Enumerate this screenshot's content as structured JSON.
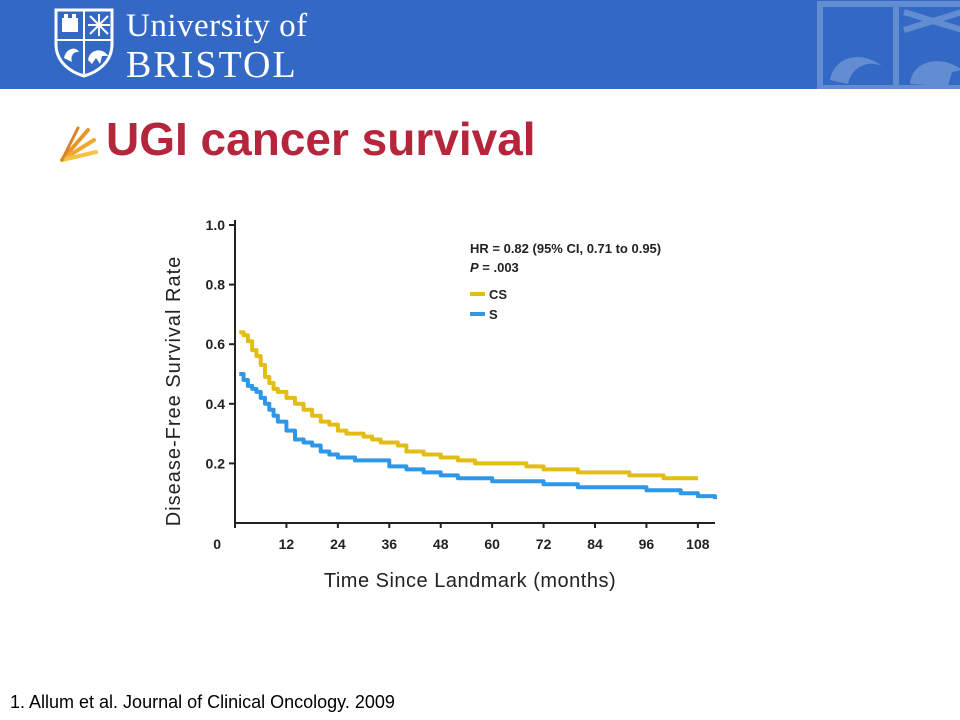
{
  "header": {
    "university_line1": "University of",
    "university_line2": "BRISTOL",
    "background_color": "#3369c4"
  },
  "slide": {
    "title": "UGI cancer survival",
    "title_color": "#b5253b",
    "title_icon": "fan-bullet-icon"
  },
  "chart_data": {
    "type": "line",
    "title": "",
    "xlabel": "Time Since Landmark (months)",
    "ylabel": "Disease-Free Survival Rate",
    "xlim": [
      0,
      112
    ],
    "ylim": [
      0,
      1.0
    ],
    "x_ticks": [
      "0",
      "12",
      "24",
      "36",
      "48",
      "60",
      "72",
      "84",
      "96",
      "108"
    ],
    "x_tick_values": [
      0,
      12,
      24,
      36,
      48,
      60,
      72,
      84,
      96,
      108
    ],
    "y_ticks": [
      "1.0",
      "0.8",
      "0.6",
      "0.4",
      "0.2"
    ],
    "y_tick_values": [
      1.0,
      0.8,
      0.6,
      0.4,
      0.2
    ],
    "grid": false,
    "legend_position": "top-right",
    "annotation_hr": "HR = 0.82 (95% CI, 0.71 to 0.95)",
    "annotation_p_label": "P",
    "annotation_p_value": " = .003",
    "series": [
      {
        "name": "CS",
        "color": "#e2bd16",
        "x": [
          1,
          2,
          3,
          4,
          5,
          6,
          7,
          8,
          9,
          10,
          12,
          14,
          16,
          18,
          20,
          22,
          24,
          26,
          28,
          30,
          32,
          34,
          36,
          38,
          40,
          44,
          48,
          52,
          56,
          60,
          64,
          68,
          72,
          76,
          80,
          84,
          88,
          92,
          96,
          100,
          104,
          108
        ],
        "y": [
          0.64,
          0.63,
          0.61,
          0.58,
          0.56,
          0.53,
          0.49,
          0.47,
          0.45,
          0.44,
          0.42,
          0.4,
          0.38,
          0.36,
          0.34,
          0.33,
          0.31,
          0.3,
          0.3,
          0.29,
          0.28,
          0.27,
          0.27,
          0.26,
          0.24,
          0.23,
          0.22,
          0.21,
          0.2,
          0.2,
          0.2,
          0.19,
          0.18,
          0.18,
          0.17,
          0.17,
          0.17,
          0.16,
          0.16,
          0.15,
          0.15,
          0.15
        ]
      },
      {
        "name": "S",
        "color": "#2f97e8",
        "x": [
          1,
          2,
          3,
          4,
          5,
          6,
          7,
          8,
          9,
          10,
          12,
          14,
          16,
          18,
          20,
          22,
          24,
          28,
          32,
          36,
          40,
          44,
          48,
          52,
          56,
          60,
          64,
          68,
          72,
          76,
          80,
          84,
          88,
          92,
          96,
          100,
          104,
          108,
          112
        ],
        "y": [
          0.5,
          0.48,
          0.46,
          0.45,
          0.44,
          0.42,
          0.4,
          0.38,
          0.36,
          0.34,
          0.31,
          0.28,
          0.27,
          0.26,
          0.24,
          0.23,
          0.22,
          0.21,
          0.21,
          0.19,
          0.18,
          0.17,
          0.16,
          0.15,
          0.15,
          0.14,
          0.14,
          0.14,
          0.13,
          0.13,
          0.12,
          0.12,
          0.12,
          0.12,
          0.11,
          0.11,
          0.1,
          0.09,
          0.08
        ]
      }
    ]
  },
  "citation": "1. Allum et al. Journal of Clinical Oncology. 2009"
}
